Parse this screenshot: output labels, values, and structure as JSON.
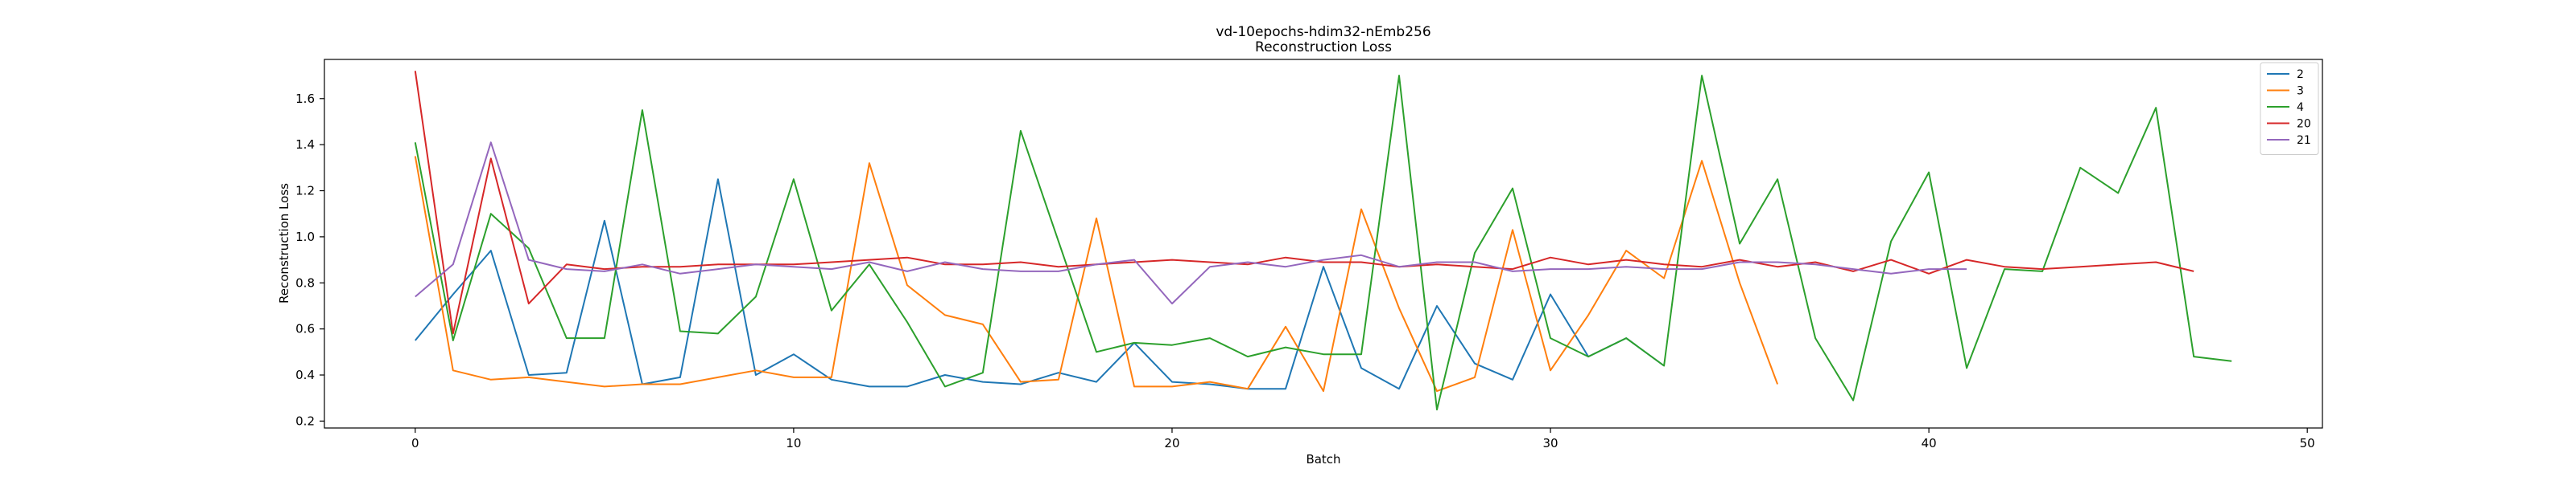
{
  "chart_data": {
    "type": "line",
    "title": "vd-10epochs-hdim32-nEmb256",
    "subtitle": "Reconstruction Loss",
    "xlabel": "Batch",
    "ylabel": "Reconstruction Loss",
    "xlim": [
      -2.4,
      50.4
    ],
    "ylim": [
      0.17,
      1.77
    ],
    "xticks": [
      0,
      10,
      20,
      30,
      40,
      50
    ],
    "yticks": [
      0.2,
      0.4,
      0.6,
      0.8,
      1.0,
      1.2,
      1.4,
      1.6
    ],
    "xtick_labels": [
      "0",
      "10",
      "20",
      "30",
      "40",
      "50"
    ],
    "ytick_labels": [
      "0.2",
      "0.4",
      "0.6",
      "0.8",
      "1.0",
      "1.2",
      "1.4",
      "1.6"
    ],
    "grid": false,
    "legend_position": "top-right",
    "series": [
      {
        "name": "2",
        "color": "#1f77b4",
        "values": [
          0.55,
          0.75,
          0.94,
          0.4,
          0.41,
          1.07,
          0.36,
          0.39,
          1.25,
          0.4,
          0.49,
          0.38,
          0.35,
          0.35,
          0.4,
          0.37,
          0.36,
          0.41,
          0.37,
          0.54,
          0.37,
          0.36,
          0.34,
          0.34,
          0.87,
          0.43,
          0.34,
          0.7,
          0.45,
          0.38,
          0.75,
          0.48,
          0.56,
          0.44
        ]
      },
      {
        "name": "3",
        "color": "#ff7f0e",
        "values": [
          1.35,
          0.42,
          0.38,
          0.39,
          0.37,
          0.35,
          0.36,
          0.36,
          0.39,
          0.42,
          0.39,
          0.39,
          1.32,
          0.79,
          0.66,
          0.62,
          0.37,
          0.38,
          1.08,
          0.35,
          0.35,
          0.37,
          0.34,
          0.61,
          0.33,
          1.12,
          0.69,
          0.33,
          0.39,
          1.03,
          0.42,
          0.66,
          0.94,
          0.82,
          1.33,
          0.8,
          0.36
        ]
      },
      {
        "name": "4",
        "color": "#2ca02c",
        "values": [
          1.41,
          0.55,
          1.1,
          0.95,
          0.56,
          0.56,
          1.55,
          0.59,
          0.58,
          0.74,
          1.25,
          0.68,
          0.88,
          0.63,
          0.35,
          0.41,
          1.46,
          0.98,
          0.5,
          0.54,
          0.53,
          0.56,
          0.48,
          0.52,
          0.49,
          0.49,
          1.7,
          0.25,
          0.93,
          1.21,
          0.56,
          0.48,
          0.56,
          0.44,
          1.7,
          0.97,
          1.25,
          0.56,
          0.29,
          0.98,
          1.28,
          0.43,
          0.86,
          0.85,
          1.3,
          1.19,
          1.56,
          0.48,
          0.46
        ]
      },
      {
        "name": "20",
        "color": "#d62728",
        "values": [
          1.72,
          0.58,
          1.34,
          0.71,
          0.88,
          0.86,
          0.87,
          0.87,
          0.88,
          0.88,
          0.88,
          0.89,
          0.9,
          0.91,
          0.88,
          0.88,
          0.89,
          0.87,
          0.88,
          0.89,
          0.9,
          0.89,
          0.88,
          0.91,
          0.89,
          0.89,
          0.87,
          0.88,
          0.87,
          0.86,
          0.91,
          0.88,
          0.9,
          0.88,
          0.87,
          0.9,
          0.87,
          0.89,
          0.85,
          0.9,
          0.84,
          0.9,
          0.87,
          0.86,
          0.87,
          0.88,
          0.89,
          0.85
        ]
      },
      {
        "name": "21",
        "color": "#9467bd",
        "values": [
          0.74,
          0.88,
          1.41,
          0.9,
          0.86,
          0.85,
          0.88,
          0.84,
          0.86,
          0.88,
          0.87,
          0.86,
          0.89,
          0.85,
          0.89,
          0.86,
          0.85,
          0.85,
          0.88,
          0.9,
          0.71,
          0.87,
          0.89,
          0.87,
          0.9,
          0.92,
          0.87,
          0.89,
          0.89,
          0.85,
          0.86,
          0.86,
          0.87,
          0.86,
          0.86,
          0.89,
          0.89,
          0.88,
          0.86,
          0.84,
          0.86,
          0.86
        ]
      }
    ]
  }
}
